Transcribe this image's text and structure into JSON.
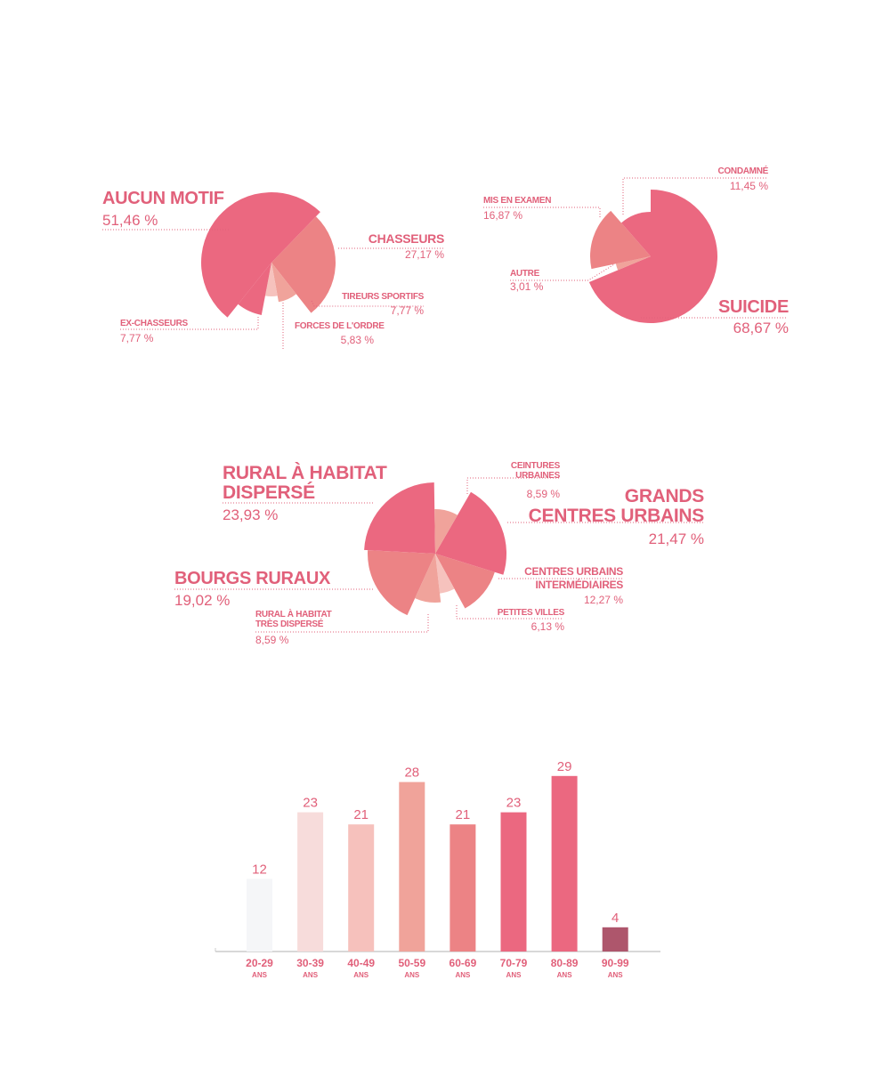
{
  "chart_data": [
    {
      "type": "pie",
      "title": "",
      "slices": [
        {
          "label": "CHASSEURS",
          "value": 27.17,
          "value_label": "27,17 %",
          "color": "#ec8385"
        },
        {
          "label": "TIREURS SPORTIFS",
          "value": 7.77,
          "value_label": "7,77 %",
          "color": "#f0a39b"
        },
        {
          "label": "FORCES DE L'ORDRE",
          "value": 5.83,
          "value_label": "5,83 %",
          "color": "#f6c2bd"
        },
        {
          "label": "EX-CHASSEURS",
          "value": 7.77,
          "value_label": "7,77 %",
          "color": "#eb6880"
        },
        {
          "label": "AUCUN MOTIF",
          "value": 51.46,
          "value_label": "51,46 %",
          "color": "#eb6880"
        }
      ]
    },
    {
      "type": "pie",
      "title": "",
      "slices": [
        {
          "label": "SUICIDE",
          "value": 68.67,
          "value_label": "68,67 %",
          "color": "#eb6880"
        },
        {
          "label": "AUTRE",
          "value": 3.01,
          "value_label": "3,01 %",
          "color": "#f0a39b"
        },
        {
          "label": "MIS EN EXAMEN",
          "value": 16.87,
          "value_label": "16,87 %",
          "color": "#ec8385"
        },
        {
          "label": "CONDAMNÉ",
          "value": 11.45,
          "value_label": "11,45 %",
          "color": "#eb6880"
        }
      ]
    },
    {
      "type": "pie",
      "title": "",
      "slices": [
        {
          "label": "GRANDS CENTRES URBAINS",
          "label_lines": [
            "GRANDS",
            "CENTRES URBAINS"
          ],
          "value": 21.47,
          "value_label": "21,47 %",
          "color": "#eb6880"
        },
        {
          "label": "CENTRES URBAINS INTERMÉDIAIRES",
          "label_lines": [
            "CENTRES URBAINS",
            "INTERMÉDIAIRES"
          ],
          "value": 12.27,
          "value_label": "12,27 %",
          "color": "#ec8385"
        },
        {
          "label": "PETITES VILLES",
          "label_lines": [
            "PETITES VILLES"
          ],
          "value": 6.13,
          "value_label": "6,13 %",
          "color": "#f6c2bd"
        },
        {
          "label": "RURAL À HABITAT TRÈS DISPERSÉ",
          "label_lines": [
            "RURAL À HABITAT",
            "TRÈS DISPERSÉ"
          ],
          "value": 8.59,
          "value_label": "8,59 %",
          "color": "#f0a39b"
        },
        {
          "label": "BOURGS RURAUX",
          "label_lines": [
            "BOURGS RURAUX"
          ],
          "value": 19.02,
          "value_label": "19,02 %",
          "color": "#ec8385"
        },
        {
          "label": "RURAL À HABITAT DISPERSÉ",
          "label_lines": [
            "RURAL À HABITAT",
            "DISPERSÉ"
          ],
          "value": 23.93,
          "value_label": "23,93 %",
          "color": "#eb6880"
        },
        {
          "label": "CEINTURES URBAINES",
          "label_lines": [
            "CEINTURES",
            "URBAINES"
          ],
          "value": 8.59,
          "value_label": "8,59 %",
          "color": "#f0a39b"
        }
      ]
    },
    {
      "type": "bar",
      "title": "",
      "xlabel": "",
      "ylabel": "",
      "ylim": [
        0,
        29
      ],
      "categories": [
        "20-29",
        "30-39",
        "40-49",
        "50-59",
        "60-69",
        "70-79",
        "80-89",
        "90-99"
      ],
      "unit_label": "ANS",
      "values": [
        12,
        23,
        21,
        28,
        21,
        23,
        29,
        4
      ],
      "colors": [
        "#f5f6f8",
        "#f7dcdb",
        "#f6c1bc",
        "#f0a39a",
        "#ec8385",
        "#eb6880",
        "#eb6880",
        "#ae566c"
      ]
    }
  ]
}
